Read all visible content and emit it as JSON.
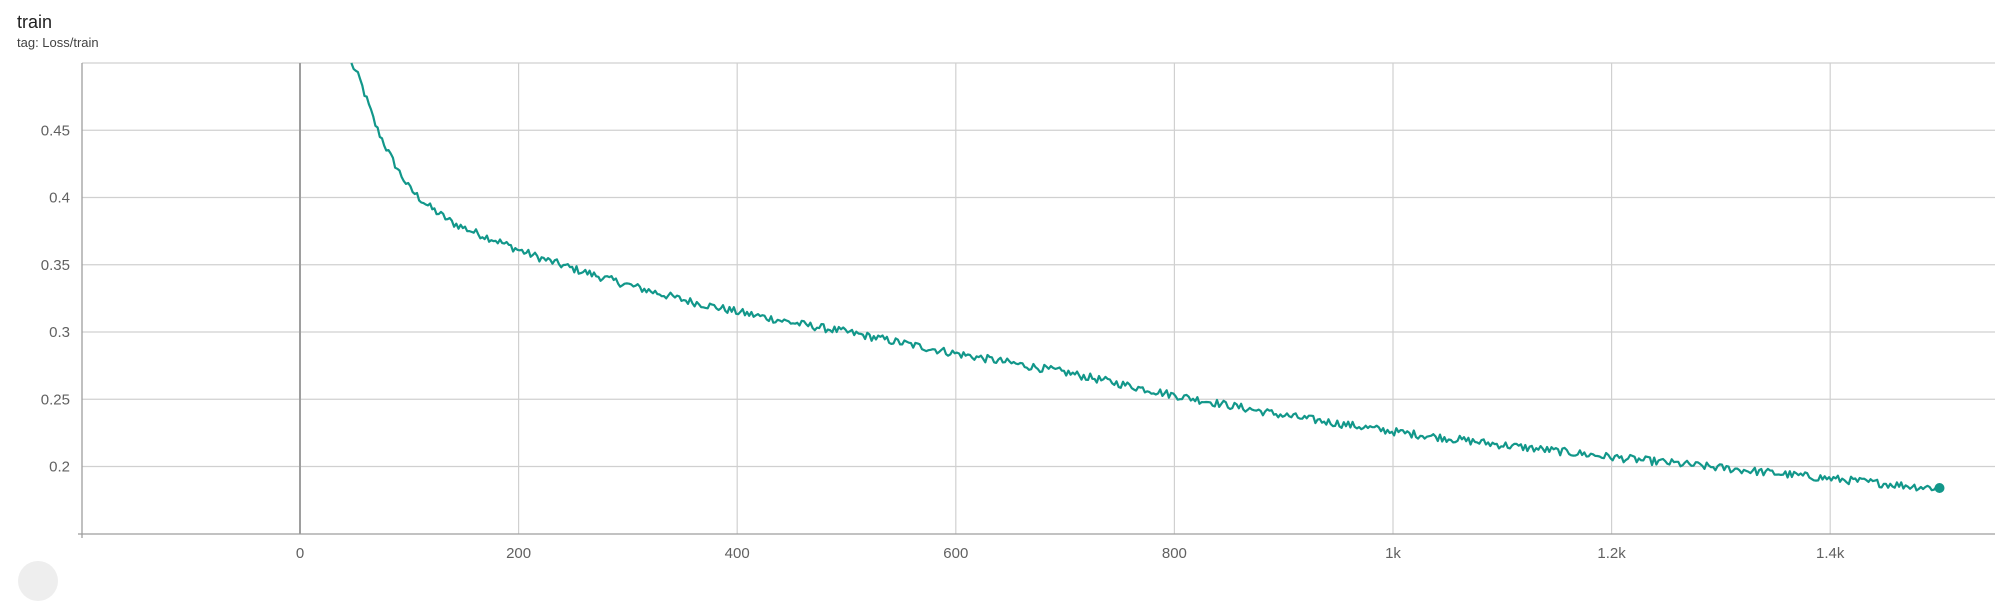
{
  "card": {
    "title": "train",
    "tag": "tag: Loss/train"
  },
  "colors": {
    "series": "#12978a",
    "grid": "#d0d0d0",
    "axis": "#9e9e9e"
  },
  "chart_data": {
    "type": "line",
    "title": "train",
    "subtitle": "tag: Loss/train",
    "xlabel": "",
    "ylabel": "",
    "xlim": [
      -200,
      1550
    ],
    "ylim": [
      0.15,
      0.5
    ],
    "grid": true,
    "legend": "none",
    "x_ticks": [
      {
        "value": 0,
        "label": "0"
      },
      {
        "value": 200,
        "label": "200"
      },
      {
        "value": 400,
        "label": "400"
      },
      {
        "value": 600,
        "label": "600"
      },
      {
        "value": 800,
        "label": "800"
      },
      {
        "value": 1000,
        "label": "1k"
      },
      {
        "value": 1200,
        "label": "1.2k"
      },
      {
        "value": 1400,
        "label": "1.4k"
      }
    ],
    "y_ticks": [
      {
        "value": 0.2,
        "label": "0.2"
      },
      {
        "value": 0.25,
        "label": "0.25"
      },
      {
        "value": 0.3,
        "label": "0.3"
      },
      {
        "value": 0.35,
        "label": "0.35"
      },
      {
        "value": 0.4,
        "label": "0.4"
      },
      {
        "value": 0.45,
        "label": "0.45"
      }
    ],
    "series": [
      {
        "x": [
          47,
          55,
          60,
          70,
          80,
          90,
          100,
          110,
          120,
          140,
          160,
          180,
          200,
          220,
          250,
          300,
          350,
          400,
          450,
          500,
          600,
          700,
          800,
          900,
          1000,
          1100,
          1200,
          1300,
          1400,
          1480,
          1500
        ],
        "y": [
          0.5,
          0.487,
          0.475,
          0.452,
          0.435,
          0.42,
          0.407,
          0.399,
          0.392,
          0.381,
          0.374,
          0.368,
          0.361,
          0.355,
          0.347,
          0.335,
          0.324,
          0.315,
          0.307,
          0.3,
          0.284,
          0.27,
          0.253,
          0.238,
          0.226,
          0.216,
          0.207,
          0.199,
          0.191,
          0.185,
          0.184
        ]
      }
    ]
  }
}
